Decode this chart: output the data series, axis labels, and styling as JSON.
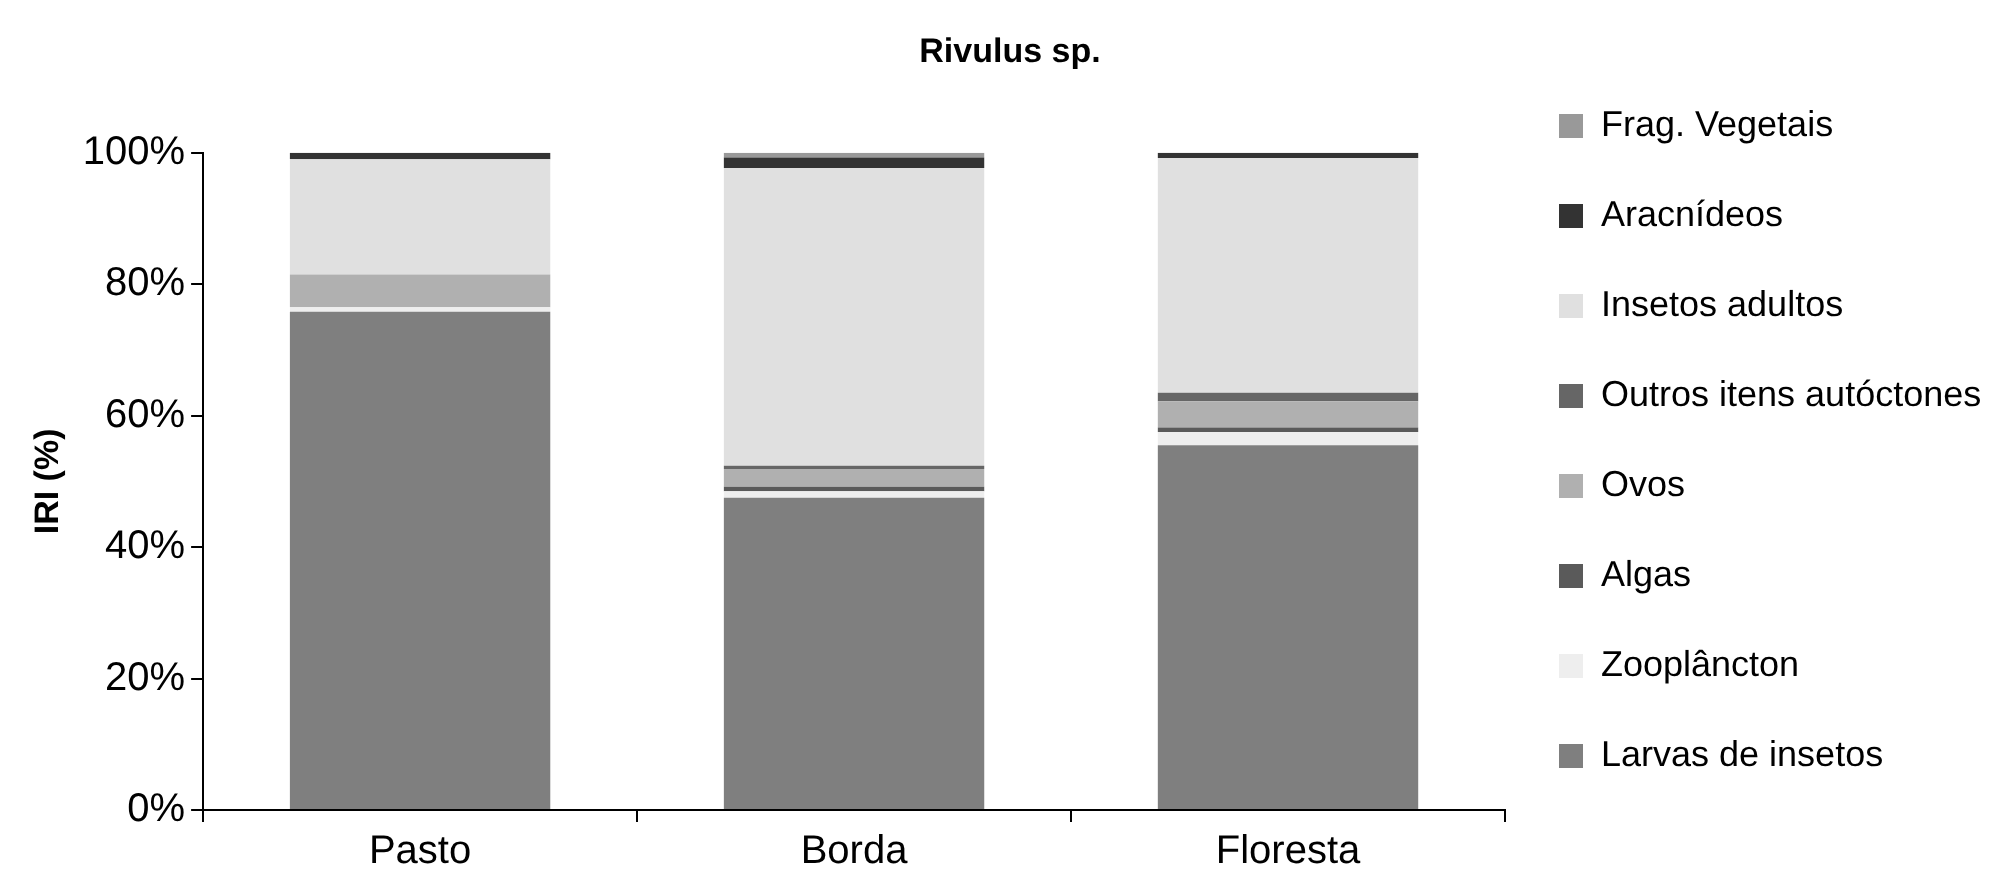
{
  "chart_data": {
    "type": "bar",
    "stacked": true,
    "title": "Rivulus sp.",
    "ylabel": "IRI (%)",
    "categories": [
      "Pasto",
      "Borda",
      "Floresta"
    ],
    "series": [
      {
        "name": "Larvas de insetos",
        "color": "#7f7f7f",
        "values": [
          75.8,
          47.5,
          55.5
        ]
      },
      {
        "name": "Zooplâncton",
        "color": "#eeeeee",
        "values": [
          0.7,
          1,
          2
        ]
      },
      {
        "name": "Algas",
        "color": "#5a5a5a",
        "values": [
          0,
          0.7,
          0.7
        ]
      },
      {
        "name": "Ovos",
        "color": "#b0b0b0",
        "values": [
          5,
          2.7,
          4
        ]
      },
      {
        "name": "Outros itens autóctones",
        "color": "#666666",
        "values": [
          0,
          0.5,
          1.3
        ]
      },
      {
        "name": "Insetos adultos",
        "color": "#e0e0e0",
        "values": [
          17.5,
          45.3,
          35.7
        ]
      },
      {
        "name": "Aracnídeos",
        "color": "#333333",
        "values": [
          1,
          1.6,
          0.8
        ]
      },
      {
        "name": "Frag. Vegetais",
        "color": "#999999",
        "values": [
          0,
          0.7,
          0
        ]
      }
    ],
    "ylim": [
      0,
      100
    ],
    "yticks": [
      {
        "value": 0,
        "label": "0%"
      },
      {
        "value": 20,
        "label": "20%"
      },
      {
        "value": 40,
        "label": "40%"
      },
      {
        "value": 60,
        "label": "60%"
      },
      {
        "value": 80,
        "label": "80%"
      },
      {
        "value": 100,
        "label": "100%"
      }
    ],
    "grid": false,
    "legend": "right"
  }
}
